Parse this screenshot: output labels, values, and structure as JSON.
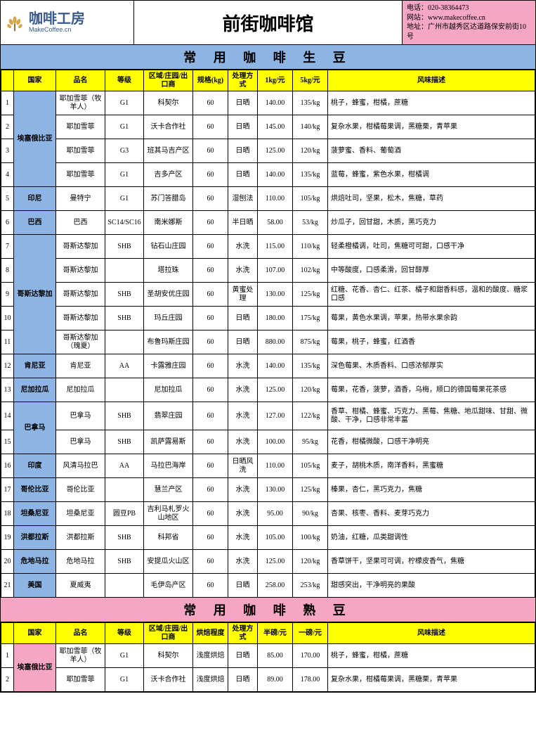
{
  "header": {
    "logo_main": "咖啡工房",
    "logo_sub": "MakeCoffee.cn",
    "title": "前街咖啡馆",
    "contact_phone_label": "电话：",
    "contact_phone": "020-38364473",
    "contact_web_label": "网站：",
    "contact_web": "www.makecoffee.cn",
    "contact_addr_label": "地址：",
    "contact_addr": "广州市越秀区达道路保安前街10号"
  },
  "sections": {
    "raw": {
      "title": "常 用 咖 啡 生 豆",
      "columns": [
        "",
        "国家",
        "品名",
        "等级",
        "区域/庄园/出口商",
        "规格(kg)",
        "处理方式",
        "1kg/元",
        "5kg/元",
        "风味描述"
      ]
    },
    "roasted": {
      "title": "常 用 咖 啡 熟 豆",
      "columns": [
        "",
        "国家",
        "品名",
        "等级",
        "区域/庄园/出口商",
        "烘焙程度",
        "处理方式",
        "半磅/元",
        "一磅/元",
        "风味描述"
      ]
    }
  },
  "raw_country_groups": [
    {
      "country": "埃塞俄比亚",
      "rowspan": 4
    },
    {
      "country": "印尼",
      "rowspan": 1
    },
    {
      "country": "巴西",
      "rowspan": 1
    },
    {
      "country": "哥斯达黎加",
      "rowspan": 5
    },
    {
      "country": "肯尼亚",
      "rowspan": 1
    },
    {
      "country": "尼加拉瓜",
      "rowspan": 1
    },
    {
      "country": "巴拿马",
      "rowspan": 2
    },
    {
      "country": "印度",
      "rowspan": 1
    },
    {
      "country": "哥伦比亚",
      "rowspan": 1
    },
    {
      "country": "坦桑尼亚",
      "rowspan": 1
    },
    {
      "country": "洪都拉斯",
      "rowspan": 1
    },
    {
      "country": "危地马拉",
      "rowspan": 1
    },
    {
      "country": "美国",
      "rowspan": 1
    }
  ],
  "raw_rows": [
    {
      "idx": 1,
      "name": "耶加雪菲（牧羊人）",
      "grade": "G1",
      "region": "科契尔",
      "spec": "60",
      "process": "日晒",
      "p1": "140.00",
      "p5": "135/kg",
      "flavor": "桃子，蜂蜜，柑橘，蔗糖"
    },
    {
      "idx": 2,
      "name": "耶加雪菲",
      "grade": "G1",
      "region": "沃卡合作社",
      "spec": "60",
      "process": "日晒",
      "p1": "145.00",
      "p5": "140/kg",
      "flavor": "复杂水果，柑橘莓果调，黑糖栗，青苹果"
    },
    {
      "idx": 3,
      "name": "耶加雪菲",
      "grade": "G3",
      "region": "班其马吉产区",
      "spec": "60",
      "process": "日晒",
      "p1": "125.00",
      "p5": "120/kg",
      "flavor": "菠萝蜜、香料、葡萄酒"
    },
    {
      "idx": 4,
      "name": "耶加雪菲",
      "grade": "G1",
      "region": "吉多产区",
      "spec": "60",
      "process": "日晒",
      "p1": "140.00",
      "p5": "135/kg",
      "flavor": "蓝莓，蜂蜜，紫色水果，柑橘调"
    },
    {
      "idx": 5,
      "name": "曼特宁",
      "grade": "G1",
      "region": "苏门答腊岛",
      "spec": "60",
      "process": "湿刨法",
      "p1": "110.00",
      "p5": "105/kg",
      "flavor": "烘焙吐司，坚果，松木，焦糖，草药"
    },
    {
      "idx": 6,
      "name": "巴西",
      "grade": "SC14/SC16",
      "region": "南米娜斯",
      "spec": "60",
      "process": "半日晒",
      "p1": "58.00",
      "p5": "53/kg",
      "flavor": "炒瓜子，回甘甜，木质，黑巧克力"
    },
    {
      "idx": 7,
      "name": "哥斯达黎加",
      "grade": "SHB",
      "region": "钻石山庄园",
      "spec": "60",
      "process": "水洗",
      "p1": "115.00",
      "p5": "110/kg",
      "flavor": "轻柔橙橘调，吐司，焦糖可可甜，口感干净"
    },
    {
      "idx": 8,
      "name": "哥斯达黎加",
      "grade": "",
      "region": "塔拉珠",
      "spec": "60",
      "process": "水洗",
      "p1": "107.00",
      "p5": "102/kg",
      "flavor": "中等酸度，口感柔滑，回甘醇厚"
    },
    {
      "idx": 9,
      "name": "哥斯达黎加",
      "grade": "SHB",
      "region": "圣胡安优庄园",
      "spec": "60",
      "process": "黄蜜处理",
      "p1": "130.00",
      "p5": "125/kg",
      "flavor": "红糖、花香、杏仁、红茶、橘子和甜香料感，温和的酸度、糖浆口感"
    },
    {
      "idx": 10,
      "name": "哥斯达黎加",
      "grade": "SHB",
      "region": "玛丘庄园",
      "spec": "60",
      "process": "日晒",
      "p1": "180.00",
      "p5": "175/kg",
      "flavor": "莓果，黄色水果调，苹果，热带水果余韵"
    },
    {
      "idx": 11,
      "name": "哥斯达黎加（瑰夏）",
      "grade": "",
      "region": "布鲁玛斯庄园",
      "spec": "60",
      "process": "日晒",
      "p1": "880.00",
      "p5": "875/kg",
      "flavor": "莓果，桃子，蜂蜜，红酒香"
    },
    {
      "idx": 12,
      "name": "肯尼亚",
      "grade": "AA",
      "region": "卡露雅庄园",
      "spec": "60",
      "process": "水洗",
      "p1": "140.00",
      "p5": "135/kg",
      "flavor": "深色莓果、木质香料、口感浓郁厚实"
    },
    {
      "idx": 13,
      "name": "尼加拉瓜",
      "grade": "",
      "region": "尼加拉瓜",
      "spec": "60",
      "process": "水洗",
      "p1": "125.00",
      "p5": "120/kg",
      "flavor": "莓果，花香，菠萝，酒香，乌梅，顺口的德国莓果花茶感"
    },
    {
      "idx": 14,
      "name": "巴拿马",
      "grade": "SHB",
      "region": "翡翠庄园",
      "spec": "60",
      "process": "水洗",
      "p1": "127.00",
      "p5": "122/kg",
      "flavor": "香草、柑橘、蜂蜜、巧克力、黑莓、焦糖、地瓜甜味、甘甜、微酸、干净，口感非常丰富"
    },
    {
      "idx": 15,
      "name": "巴拿马",
      "grade": "SHB",
      "region": "凯萨露易斯",
      "spec": "60",
      "process": "水洗",
      "p1": "100.00",
      "p5": "95/kg",
      "flavor": "花香，柑橘微酸，口感干净明亮"
    },
    {
      "idx": 16,
      "name": "风清马拉巴",
      "grade": "AA",
      "region": "马拉巴海岸",
      "spec": "60",
      "process": "日晒风洗",
      "p1": "110.00",
      "p5": "105/kg",
      "flavor": "麦子，胡桃木质，南洋香料，黑蜜糖"
    },
    {
      "idx": 17,
      "name": "哥伦比亚",
      "grade": "",
      "region": "慧兰产区",
      "spec": "60",
      "process": "水洗",
      "p1": "130.00",
      "p5": "125/kg",
      "flavor": "榛果，杏仁，黑巧克力，焦糖"
    },
    {
      "idx": 18,
      "name": "坦桑尼亚",
      "grade": "圆豆PB",
      "region": "吉利马札罗火山地区",
      "spec": "60",
      "process": "水洗",
      "p1": "95.00",
      "p5": "90/kg",
      "flavor": "杏果、核枣、香料、麦芽巧克力"
    },
    {
      "idx": 19,
      "name": "洪都拉斯",
      "grade": "SHB",
      "region": "科邦省",
      "spec": "60",
      "process": "水洗",
      "p1": "105.00",
      "p5": "100/kg",
      "flavor": "奶油，红糖，瓜类甜调性"
    },
    {
      "idx": 20,
      "name": "危地马拉",
      "grade": "SHB",
      "region": "安提瓜火山区",
      "spec": "60",
      "process": "水洗",
      "p1": "125.00",
      "p5": "120/kg",
      "flavor": "香草饼干，坚果可可调，柠檬皮香气，焦糖"
    },
    {
      "idx": 21,
      "name": "夏威夷",
      "grade": "",
      "region": "毛伊岛产区",
      "spec": "60",
      "process": "日晒",
      "p1": "258.00",
      "p5": "253/kg",
      "flavor": "甜感突出，干净明亮的果酸"
    }
  ],
  "roasted_country_groups": [
    {
      "country": "埃塞俄比亚",
      "rowspan": 2
    }
  ],
  "roasted_rows": [
    {
      "idx": 1,
      "name": "耶加雪菲（牧羊人）",
      "grade": "G1",
      "region": "科契尔",
      "roast": "浅度烘焙",
      "process": "日晒",
      "p1": "85.00",
      "p5": "170.00",
      "flavor": "桃子，蜂蜜，柑橘，蔗糖"
    },
    {
      "idx": 2,
      "name": "耶加雪菲",
      "grade": "G1",
      "region": "沃卡合作社",
      "roast": "浅度烘焙",
      "process": "日晒",
      "p1": "89.00",
      "p5": "178.00",
      "flavor": "复杂水果，柑橘莓果调，黑糖栗，青苹果"
    }
  ],
  "colors": {
    "blue": "#8db4e2",
    "pink": "#f4a6c4",
    "yellow": "#ffff00"
  }
}
